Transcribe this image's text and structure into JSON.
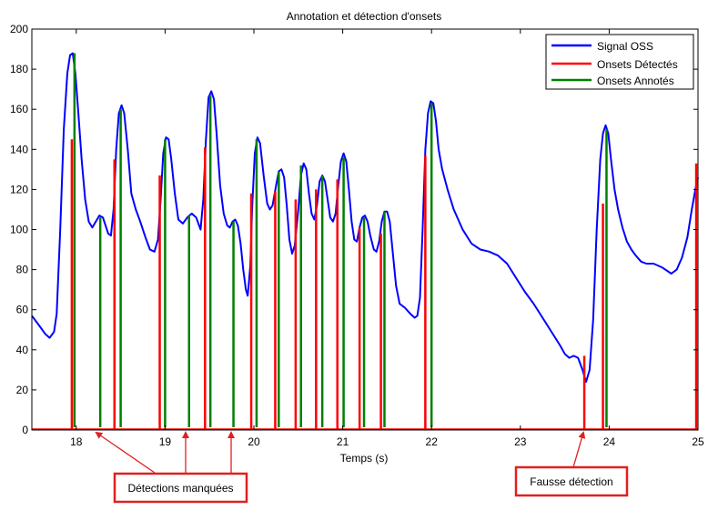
{
  "chart_data": {
    "type": "line",
    "title": "Annotation et détection d'onsets",
    "xlabel": "Temps (s)",
    "ylabel": "",
    "xlim": [
      17.5,
      25
    ],
    "ylim": [
      0,
      200
    ],
    "x_ticks": [
      18,
      19,
      20,
      21,
      22,
      23,
      24,
      25
    ],
    "y_ticks": [
      0,
      20,
      40,
      60,
      80,
      100,
      120,
      140,
      160,
      180,
      200
    ],
    "legend_position": "top-right",
    "colors": {
      "signal": "#0000ff",
      "detected": "#ff0000",
      "annotated": "#008000",
      "annotation_box": "#e02020",
      "arrow": "#e02020"
    },
    "series": [
      {
        "name": "Signal OSS",
        "kind": "line",
        "points": [
          [
            17.5,
            57
          ],
          [
            17.55,
            54
          ],
          [
            17.6,
            51
          ],
          [
            17.65,
            48
          ],
          [
            17.7,
            46
          ],
          [
            17.75,
            49
          ],
          [
            17.78,
            58
          ],
          [
            17.82,
            100
          ],
          [
            17.86,
            150
          ],
          [
            17.9,
            178
          ],
          [
            17.93,
            187
          ],
          [
            17.96,
            188
          ],
          [
            17.99,
            178
          ],
          [
            18.02,
            160
          ],
          [
            18.06,
            135
          ],
          [
            18.1,
            115
          ],
          [
            18.14,
            104
          ],
          [
            18.18,
            101
          ],
          [
            18.22,
            104
          ],
          [
            18.26,
            107
          ],
          [
            18.3,
            106
          ],
          [
            18.33,
            102
          ],
          [
            18.36,
            98
          ],
          [
            18.39,
            97
          ],
          [
            18.42,
            110
          ],
          [
            18.45,
            140
          ],
          [
            18.48,
            158
          ],
          [
            18.51,
            162
          ],
          [
            18.54,
            158
          ],
          [
            18.58,
            140
          ],
          [
            18.62,
            118
          ],
          [
            18.67,
            110
          ],
          [
            18.72,
            104
          ],
          [
            18.78,
            96
          ],
          [
            18.83,
            90
          ],
          [
            18.88,
            89
          ],
          [
            18.92,
            95
          ],
          [
            18.95,
            115
          ],
          [
            18.98,
            138
          ],
          [
            19.01,
            146
          ],
          [
            19.04,
            145
          ],
          [
            19.07,
            135
          ],
          [
            19.11,
            118
          ],
          [
            19.15,
            105
          ],
          [
            19.2,
            103
          ],
          [
            19.25,
            106
          ],
          [
            19.3,
            108
          ],
          [
            19.35,
            106
          ],
          [
            19.4,
            100
          ],
          [
            19.43,
            115
          ],
          [
            19.46,
            145
          ],
          [
            19.49,
            166
          ],
          [
            19.52,
            169
          ],
          [
            19.55,
            165
          ],
          [
            19.58,
            148
          ],
          [
            19.62,
            122
          ],
          [
            19.66,
            108
          ],
          [
            19.7,
            102
          ],
          [
            19.73,
            101
          ],
          [
            19.76,
            104
          ],
          [
            19.79,
            105
          ],
          [
            19.82,
            102
          ],
          [
            19.85,
            93
          ],
          [
            19.88,
            80
          ],
          [
            19.91,
            70
          ],
          [
            19.93,
            67
          ],
          [
            19.96,
            82
          ],
          [
            19.98,
            110
          ],
          [
            20.01,
            138
          ],
          [
            20.04,
            146
          ],
          [
            20.07,
            143
          ],
          [
            20.11,
            127
          ],
          [
            20.15,
            113
          ],
          [
            20.18,
            110
          ],
          [
            20.21,
            112
          ],
          [
            20.25,
            122
          ],
          [
            20.28,
            129
          ],
          [
            20.31,
            130
          ],
          [
            20.34,
            126
          ],
          [
            20.37,
            112
          ],
          [
            20.4,
            95
          ],
          [
            20.43,
            88
          ],
          [
            20.46,
            92
          ],
          [
            20.5,
            110
          ],
          [
            20.53,
            127
          ],
          [
            20.56,
            133
          ],
          [
            20.59,
            130
          ],
          [
            20.62,
            118
          ],
          [
            20.65,
            108
          ],
          [
            20.68,
            105
          ],
          [
            20.71,
            112
          ],
          [
            20.74,
            124
          ],
          [
            20.77,
            127
          ],
          [
            20.8,
            124
          ],
          [
            20.83,
            115
          ],
          [
            20.86,
            106
          ],
          [
            20.89,
            104
          ],
          [
            20.92,
            108
          ],
          [
            20.95,
            122
          ],
          [
            20.98,
            134
          ],
          [
            21.01,
            138
          ],
          [
            21.04,
            134
          ],
          [
            21.07,
            120
          ],
          [
            21.1,
            104
          ],
          [
            21.13,
            95
          ],
          [
            21.16,
            94
          ],
          [
            21.19,
            101
          ],
          [
            21.22,
            106
          ],
          [
            21.25,
            107
          ],
          [
            21.28,
            104
          ],
          [
            21.31,
            97
          ],
          [
            21.35,
            90
          ],
          [
            21.38,
            89
          ],
          [
            21.41,
            94
          ],
          [
            21.44,
            104
          ],
          [
            21.47,
            109
          ],
          [
            21.5,
            109
          ],
          [
            21.53,
            104
          ],
          [
            21.56,
            90
          ],
          [
            21.6,
            72
          ],
          [
            21.64,
            63
          ],
          [
            21.7,
            61
          ],
          [
            21.76,
            58
          ],
          [
            21.81,
            56
          ],
          [
            21.84,
            57
          ],
          [
            21.87,
            66
          ],
          [
            21.9,
            100
          ],
          [
            21.93,
            140
          ],
          [
            21.96,
            158
          ],
          [
            21.99,
            164
          ],
          [
            22.02,
            163
          ],
          [
            22.05,
            154
          ],
          [
            22.08,
            140
          ],
          [
            22.12,
            130
          ],
          [
            22.18,
            120
          ],
          [
            22.25,
            110
          ],
          [
            22.35,
            100
          ],
          [
            22.45,
            93
          ],
          [
            22.55,
            90
          ],
          [
            22.65,
            89
          ],
          [
            22.75,
            87
          ],
          [
            22.85,
            83
          ],
          [
            22.95,
            76
          ],
          [
            23.05,
            69
          ],
          [
            23.15,
            63
          ],
          [
            23.25,
            56
          ],
          [
            23.35,
            49
          ],
          [
            23.45,
            42
          ],
          [
            23.5,
            38
          ],
          [
            23.55,
            36
          ],
          [
            23.6,
            37
          ],
          [
            23.65,
            36
          ],
          [
            23.7,
            30
          ],
          [
            23.74,
            24
          ],
          [
            23.78,
            30
          ],
          [
            23.82,
            55
          ],
          [
            23.86,
            100
          ],
          [
            23.9,
            135
          ],
          [
            23.93,
            148
          ],
          [
            23.96,
            152
          ],
          [
            23.99,
            148
          ],
          [
            24.02,
            135
          ],
          [
            24.06,
            120
          ],
          [
            24.1,
            110
          ],
          [
            24.15,
            101
          ],
          [
            24.2,
            94
          ],
          [
            24.25,
            90
          ],
          [
            24.3,
            87
          ],
          [
            24.36,
            84
          ],
          [
            24.42,
            83
          ],
          [
            24.5,
            83
          ],
          [
            24.6,
            81
          ],
          [
            24.7,
            78
          ],
          [
            24.76,
            80
          ],
          [
            24.82,
            86
          ],
          [
            24.88,
            96
          ],
          [
            24.93,
            110
          ],
          [
            24.97,
            120
          ],
          [
            25.0,
            126
          ]
        ]
      },
      {
        "name": "Onsets Détectés",
        "kind": "stem",
        "points": [
          [
            17.95,
            145
          ],
          [
            18.43,
            135
          ],
          [
            18.94,
            127
          ],
          [
            19.45,
            141
          ],
          [
            19.97,
            118
          ],
          [
            20.24,
            119
          ],
          [
            20.47,
            115
          ],
          [
            20.7,
            120
          ],
          [
            20.94,
            125
          ],
          [
            21.19,
            101
          ],
          [
            21.43,
            98
          ],
          [
            21.93,
            137
          ],
          [
            23.72,
            37
          ],
          [
            23.93,
            113
          ],
          [
            24.98,
            133
          ]
        ]
      },
      {
        "name": "Onsets Annotés",
        "kind": "stem",
        "points": [
          [
            17.98,
            188
          ],
          [
            18.27,
            106
          ],
          [
            18.5,
            160
          ],
          [
            19.0,
            145
          ],
          [
            19.27,
            107
          ],
          [
            19.51,
            167
          ],
          [
            19.77,
            104
          ],
          [
            20.03,
            145
          ],
          [
            20.28,
            129
          ],
          [
            20.53,
            132
          ],
          [
            20.77,
            127
          ],
          [
            21.01,
            136
          ],
          [
            21.24,
            106
          ],
          [
            21.47,
            109
          ],
          [
            22.0,
            163
          ],
          [
            23.97,
            150
          ]
        ]
      }
    ],
    "annotations": [
      {
        "text": "Détections manquées",
        "targets_x": [
          18.27,
          19.27,
          19.77
        ]
      },
      {
        "text": "Fausse détection",
        "targets_x": [
          23.72
        ]
      }
    ]
  }
}
